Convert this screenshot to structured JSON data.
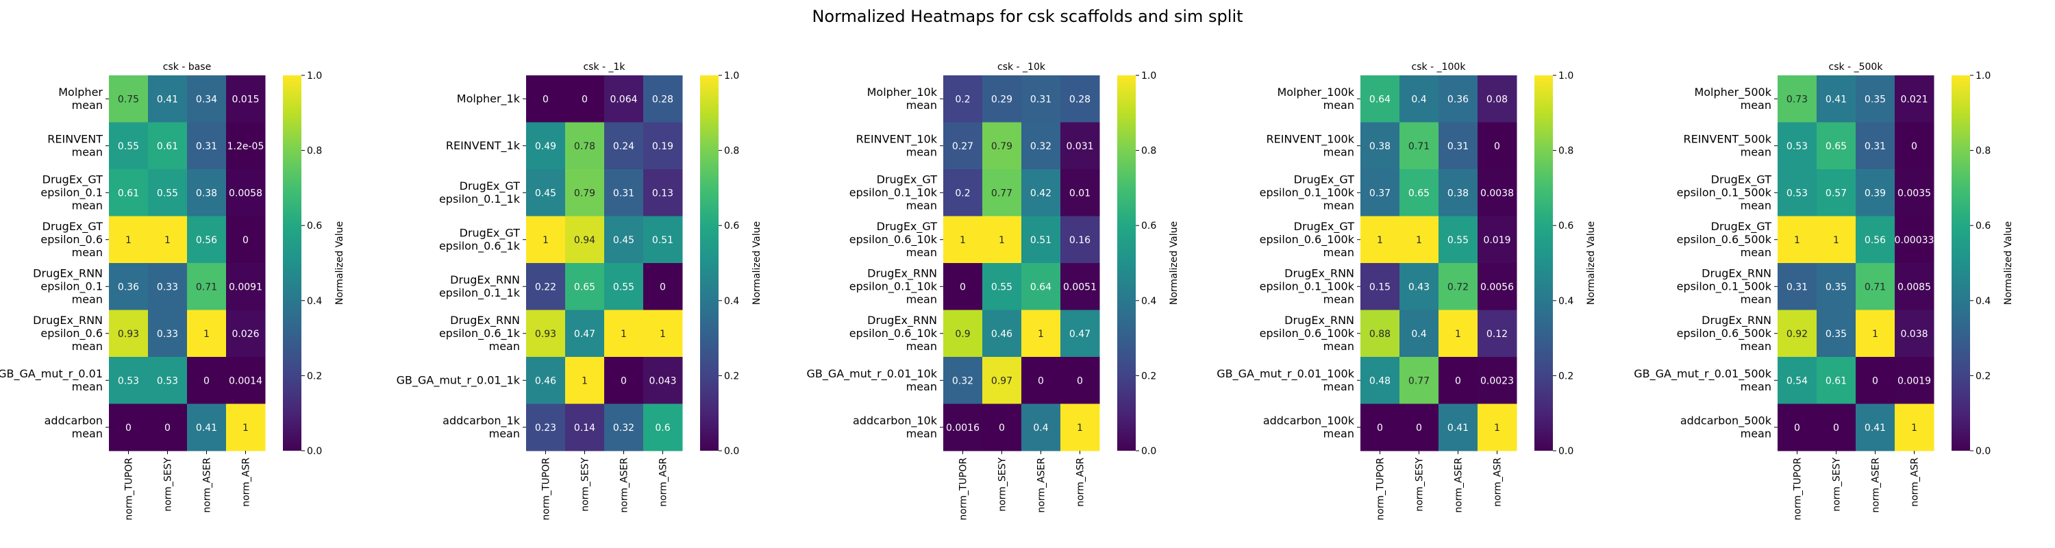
{
  "figure": {
    "title": "Normalized Heatmaps for csk scaffolds and sim split",
    "colorbar_label": "Normalized Value",
    "colorbar_ticks": [
      "0.0",
      "0.2",
      "0.4",
      "0.6",
      "0.8",
      "1.0"
    ],
    "colormap": "viridis"
  },
  "chart_data": [
    {
      "type": "heatmap",
      "title": "csk - base",
      "columns": [
        "norm_TUPOR",
        "norm_SESY",
        "norm_ASER",
        "norm_ASR"
      ],
      "rows": [
        [
          "Molpher",
          "mean"
        ],
        [
          "REINVENT",
          "mean"
        ],
        [
          "DrugEx_GT",
          "epsilon_0.1",
          "mean"
        ],
        [
          "DrugEx_GT",
          "epsilon_0.6",
          "mean"
        ],
        [
          "DrugEx_RNN",
          "epsilon_0.1",
          "mean"
        ],
        [
          "DrugEx_RNN",
          "epsilon_0.6",
          "mean"
        ],
        [
          "GB_GA_mut_r_0.01",
          "mean"
        ],
        [
          "addcarbon",
          "mean"
        ]
      ],
      "values": [
        [
          0.75,
          0.41,
          0.34,
          0.015
        ],
        [
          0.55,
          0.61,
          0.31,
          1.2e-05
        ],
        [
          0.61,
          0.55,
          0.38,
          0.0058
        ],
        [
          1,
          1,
          0.56,
          0
        ],
        [
          0.36,
          0.33,
          0.71,
          0.0091
        ],
        [
          0.93,
          0.33,
          1,
          0.026
        ],
        [
          0.53,
          0.53,
          0,
          0.0014
        ],
        [
          0,
          0,
          0.41,
          1
        ]
      ],
      "labels": [
        [
          "0.75",
          "0.41",
          "0.34",
          "0.015"
        ],
        [
          "0.55",
          "0.61",
          "0.31",
          "1.2e-05"
        ],
        [
          "0.61",
          "0.55",
          "0.38",
          "0.0058"
        ],
        [
          "1",
          "1",
          "0.56",
          "0"
        ],
        [
          "0.36",
          "0.33",
          "0.71",
          "0.0091"
        ],
        [
          "0.93",
          "0.33",
          "1",
          "0.026"
        ],
        [
          "0.53",
          "0.53",
          "0",
          "0.0014"
        ],
        [
          "0",
          "0",
          "0.41",
          "1"
        ]
      ],
      "vlim": [
        0,
        1
      ]
    },
    {
      "type": "heatmap",
      "title": "csk - _1k",
      "columns": [
        "norm_TUPOR",
        "norm_SESY",
        "norm_ASER",
        "norm_ASR"
      ],
      "rows": [
        [
          "Molpher_1k"
        ],
        [
          "REINVENT_1k"
        ],
        [
          "DrugEx_GT",
          "epsilon_0.1_1k"
        ],
        [
          "DrugEx_GT",
          "epsilon_0.6_1k"
        ],
        [
          "DrugEx_RNN",
          "epsilon_0.1_1k"
        ],
        [
          "DrugEx_RNN",
          "epsilon_0.6_1k",
          "mean"
        ],
        [
          "GB_GA_mut_r_0.01_1k"
        ],
        [
          "addcarbon_1k",
          "mean"
        ]
      ],
      "values": [
        [
          0,
          0,
          0.064,
          0.28
        ],
        [
          0.49,
          0.78,
          0.24,
          0.19
        ],
        [
          0.45,
          0.79,
          0.31,
          0.13
        ],
        [
          1,
          0.94,
          0.45,
          0.51
        ],
        [
          0.22,
          0.65,
          0.55,
          0
        ],
        [
          0.93,
          0.47,
          1,
          1
        ],
        [
          0.46,
          1,
          0,
          0.043
        ],
        [
          0.23,
          0.14,
          0.32,
          0.6
        ]
      ],
      "labels": [
        [
          "0",
          "0",
          "0.064",
          "0.28"
        ],
        [
          "0.49",
          "0.78",
          "0.24",
          "0.19"
        ],
        [
          "0.45",
          "0.79",
          "0.31",
          "0.13"
        ],
        [
          "1",
          "0.94",
          "0.45",
          "0.51"
        ],
        [
          "0.22",
          "0.65",
          "0.55",
          "0"
        ],
        [
          "0.93",
          "0.47",
          "1",
          "1"
        ],
        [
          "0.46",
          "1",
          "0",
          "0.043"
        ],
        [
          "0.23",
          "0.14",
          "0.32",
          "0.6"
        ]
      ],
      "vlim": [
        0,
        1
      ]
    },
    {
      "type": "heatmap",
      "title": "csk - _10k",
      "columns": [
        "norm_TUPOR",
        "norm_SESY",
        "norm_ASER",
        "norm_ASR"
      ],
      "rows": [
        [
          "Molpher_10k",
          "mean"
        ],
        [
          "REINVENT_10k",
          "mean"
        ],
        [
          "DrugEx_GT",
          "epsilon_0.1_10k",
          "mean"
        ],
        [
          "DrugEx_GT",
          "epsilon_0.6_10k",
          "mean"
        ],
        [
          "DrugEx_RNN",
          "epsilon_0.1_10k",
          "mean"
        ],
        [
          "DrugEx_RNN",
          "epsilon_0.6_10k",
          "mean"
        ],
        [
          "GB_GA_mut_r_0.01_10k",
          "mean"
        ],
        [
          "addcarbon_10k",
          "mean"
        ]
      ],
      "values": [
        [
          0.2,
          0.29,
          0.31,
          0.28
        ],
        [
          0.27,
          0.79,
          0.32,
          0.031
        ],
        [
          0.2,
          0.77,
          0.42,
          0.01
        ],
        [
          1,
          1,
          0.51,
          0.16
        ],
        [
          0,
          0.55,
          0.64,
          0.0051
        ],
        [
          0.9,
          0.46,
          1,
          0.47
        ],
        [
          0.32,
          0.97,
          0,
          0
        ],
        [
          0.0016,
          0,
          0.4,
          1
        ]
      ],
      "labels": [
        [
          "0.2",
          "0.29",
          "0.31",
          "0.28"
        ],
        [
          "0.27",
          "0.79",
          "0.32",
          "0.031"
        ],
        [
          "0.2",
          "0.77",
          "0.42",
          "0.01"
        ],
        [
          "1",
          "1",
          "0.51",
          "0.16"
        ],
        [
          "0",
          "0.55",
          "0.64",
          "0.0051"
        ],
        [
          "0.9",
          "0.46",
          "1",
          "0.47"
        ],
        [
          "0.32",
          "0.97",
          "0",
          "0"
        ],
        [
          "0.0016",
          "0",
          "0.4",
          "1"
        ]
      ],
      "vlim": [
        0,
        1
      ]
    },
    {
      "type": "heatmap",
      "title": "csk - _100k",
      "columns": [
        "norm_TUPOR",
        "norm_SESY",
        "norm_ASER",
        "norm_ASR"
      ],
      "rows": [
        [
          "Molpher_100k",
          "mean"
        ],
        [
          "REINVENT_100k",
          "mean"
        ],
        [
          "DrugEx_GT",
          "epsilon_0.1_100k",
          "mean"
        ],
        [
          "DrugEx_GT",
          "epsilon_0.6_100k",
          "mean"
        ],
        [
          "DrugEx_RNN",
          "epsilon_0.1_100k",
          "mean"
        ],
        [
          "DrugEx_RNN",
          "epsilon_0.6_100k",
          "mean"
        ],
        [
          "GB_GA_mut_r_0.01_100k",
          "mean"
        ],
        [
          "addcarbon_100k",
          "mean"
        ]
      ],
      "values": [
        [
          0.64,
          0.4,
          0.36,
          0.08
        ],
        [
          0.38,
          0.71,
          0.31,
          0
        ],
        [
          0.37,
          0.65,
          0.38,
          0.0038
        ],
        [
          1,
          1,
          0.55,
          0.019
        ],
        [
          0.15,
          0.43,
          0.72,
          0.0056
        ],
        [
          0.88,
          0.4,
          1,
          0.12
        ],
        [
          0.48,
          0.77,
          0,
          0.0023
        ],
        [
          0,
          0,
          0.41,
          1
        ]
      ],
      "labels": [
        [
          "0.64",
          "0.4",
          "0.36",
          "0.08"
        ],
        [
          "0.38",
          "0.71",
          "0.31",
          "0"
        ],
        [
          "0.37",
          "0.65",
          "0.38",
          "0.0038"
        ],
        [
          "1",
          "1",
          "0.55",
          "0.019"
        ],
        [
          "0.15",
          "0.43",
          "0.72",
          "0.0056"
        ],
        [
          "0.88",
          "0.4",
          "1",
          "0.12"
        ],
        [
          "0.48",
          "0.77",
          "0",
          "0.0023"
        ],
        [
          "0",
          "0",
          "0.41",
          "1"
        ]
      ],
      "vlim": [
        0,
        1
      ]
    },
    {
      "type": "heatmap",
      "title": "csk - _500k",
      "columns": [
        "norm_TUPOR",
        "norm_SESY",
        "norm_ASER",
        "norm_ASR"
      ],
      "rows": [
        [
          "Molpher_500k",
          "mean"
        ],
        [
          "REINVENT_500k",
          "mean"
        ],
        [
          "DrugEx_GT",
          "epsilon_0.1_500k",
          "mean"
        ],
        [
          "DrugEx_GT",
          "epsilon_0.6_500k",
          "mean"
        ],
        [
          "DrugEx_RNN",
          "epsilon_0.1_500k",
          "mean"
        ],
        [
          "DrugEx_RNN",
          "epsilon_0.6_500k",
          "mean"
        ],
        [
          "GB_GA_mut_r_0.01_500k",
          "mean"
        ],
        [
          "addcarbon_500k",
          "mean"
        ]
      ],
      "values": [
        [
          0.73,
          0.41,
          0.35,
          0.021
        ],
        [
          0.53,
          0.65,
          0.31,
          0
        ],
        [
          0.53,
          0.57,
          0.39,
          0.0035
        ],
        [
          1,
          1,
          0.56,
          0.00033
        ],
        [
          0.31,
          0.35,
          0.71,
          0.0085
        ],
        [
          0.92,
          0.35,
          1,
          0.038
        ],
        [
          0.54,
          0.61,
          0,
          0.0019
        ],
        [
          0,
          0,
          0.41,
          1
        ]
      ],
      "labels": [
        [
          "0.73",
          "0.41",
          "0.35",
          "0.021"
        ],
        [
          "0.53",
          "0.65",
          "0.31",
          "0"
        ],
        [
          "0.53",
          "0.57",
          "0.39",
          "0.0035"
        ],
        [
          "1",
          "1",
          "0.56",
          "0.00033"
        ],
        [
          "0.31",
          "0.35",
          "0.71",
          "0.0085"
        ],
        [
          "0.92",
          "0.35",
          "1",
          "0.038"
        ],
        [
          "0.54",
          "0.61",
          "0",
          "0.0019"
        ],
        [
          "0",
          "0",
          "0.41",
          "1"
        ]
      ],
      "vlim": [
        0,
        1
      ]
    }
  ]
}
